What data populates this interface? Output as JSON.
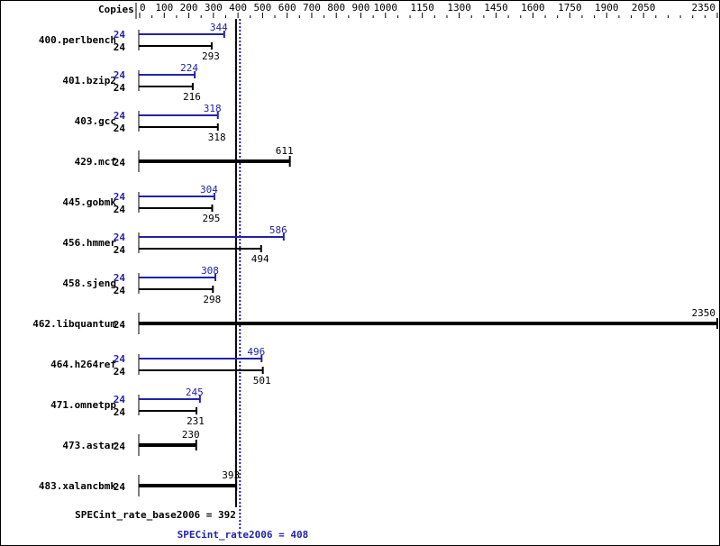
{
  "chart_data": {
    "type": "bar",
    "orientation": "horizontal",
    "axis_label": "Copies",
    "xlim": [
      0,
      2350
    ],
    "ticks": [
      0,
      100,
      200,
      300,
      400,
      500,
      600,
      700,
      800,
      900,
      1000,
      1150,
      1300,
      1450,
      1600,
      1750,
      1900,
      2050,
      2350
    ],
    "colors": {
      "base": "#000000",
      "peak": "#2222aa"
    },
    "benchmarks": [
      {
        "name": "400.perlbench",
        "peak_copies": "24",
        "peak": 344,
        "base_copies": "24",
        "base": 293
      },
      {
        "name": "401.bzip2",
        "peak_copies": "24",
        "peak": 224,
        "base_copies": "24",
        "base": 216
      },
      {
        "name": "403.gcc",
        "peak_copies": "24",
        "peak": 318,
        "base_copies": "24",
        "base": 318
      },
      {
        "name": "429.mcf",
        "base_copies": "24",
        "base": 611
      },
      {
        "name": "445.gobmk",
        "peak_copies": "24",
        "peak": 304,
        "base_copies": "24",
        "base": 295
      },
      {
        "name": "456.hmmer",
        "peak_copies": "24",
        "peak": 586,
        "base_copies": "24",
        "base": 494
      },
      {
        "name": "458.sjeng",
        "peak_copies": "24",
        "peak": 308,
        "base_copies": "24",
        "base": 298
      },
      {
        "name": "462.libquantum",
        "base_copies": "24",
        "base": 2350
      },
      {
        "name": "464.h264ref",
        "peak_copies": "24",
        "peak": 496,
        "base_copies": "24",
        "base": 501
      },
      {
        "name": "471.omnetpp",
        "peak_copies": "24",
        "peak": 245,
        "base_copies": "24",
        "base": 231
      },
      {
        "name": "473.astar",
        "base_copies": "24",
        "base": 230
      },
      {
        "name": "483.xalancbmk",
        "base_copies": "24",
        "base": 393
      }
    ],
    "base_metric": {
      "label": "SPECint_rate_base2006 = 392",
      "value": 392
    },
    "peak_metric": {
      "label": "SPECint_rate2006 = 408",
      "value": 408
    }
  }
}
